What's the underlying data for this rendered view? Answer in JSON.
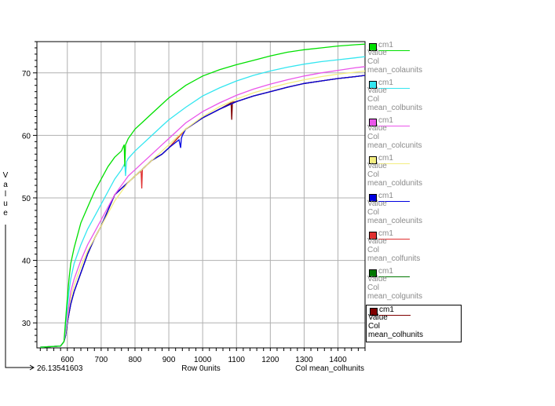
{
  "chart_data": {
    "type": "line",
    "title": "",
    "xlabel": "Row 0units",
    "ylabel": "Value",
    "x_axis_caption": "Col mean_colhunits",
    "origin_value": "26.13541603",
    "xlim": [
      510,
      1480
    ],
    "ylim": [
      26,
      75
    ],
    "x_ticks": [
      600,
      700,
      800,
      900,
      1000,
      1100,
      1200,
      1300,
      1400
    ],
    "y_ticks": [
      30,
      40,
      50,
      60,
      70
    ],
    "grid": true,
    "legend_position": "right",
    "series": [
      {
        "name": "cm1",
        "color": "#00e000",
        "legend_lines": [
          "Value",
          "Col",
          "mean_colaunits"
        ],
        "x": [
          520,
          580,
          590,
          595,
          600,
          605,
          610,
          620,
          630,
          640,
          660,
          680,
          700,
          720,
          740,
          760,
          768,
          770,
          772,
          780,
          800,
          820,
          850,
          880,
          900,
          950,
          1000,
          1050,
          1100,
          1150,
          1200,
          1250,
          1300,
          1350,
          1400,
          1450,
          1480
        ],
        "y": [
          26.1,
          26.3,
          27.0,
          30.5,
          34.0,
          37.0,
          39.5,
          42.0,
          44.0,
          46.0,
          48.5,
          51.0,
          53.0,
          55.0,
          56.5,
          57.5,
          58.5,
          55.0,
          58.5,
          59.5,
          61.0,
          62.0,
          63.5,
          65.0,
          66.0,
          68.0,
          69.5,
          70.5,
          71.3,
          72.0,
          72.7,
          73.3,
          73.7,
          74.0,
          74.3,
          74.5,
          74.6
        ]
      },
      {
        "name": "cm1",
        "color": "#33e6f0",
        "legend_lines": [
          "Value",
          "Col",
          "mean_colbunits"
        ],
        "x": [
          520,
          580,
          590,
          595,
          600,
          605,
          610,
          620,
          640,
          660,
          680,
          700,
          720,
          740,
          760,
          770,
          772,
          775,
          780,
          800,
          820,
          850,
          880,
          900,
          950,
          1000,
          1050,
          1100,
          1150,
          1200,
          1250,
          1300,
          1350,
          1400,
          1450,
          1480
        ],
        "y": [
          26.1,
          26.3,
          27.0,
          29.5,
          32.5,
          35.0,
          37.0,
          39.5,
          42.5,
          45.0,
          47.0,
          49.0,
          51.0,
          53.0,
          54.5,
          55.5,
          53.5,
          55.8,
          56.3,
          57.5,
          58.5,
          60.0,
          61.5,
          62.5,
          64.5,
          66.3,
          67.6,
          68.7,
          69.6,
          70.3,
          70.9,
          71.4,
          71.8,
          72.1,
          72.4,
          72.6
        ]
      },
      {
        "name": "cm1",
        "color": "#ea55ea",
        "legend_lines": [
          "Value",
          "Col",
          "mean_colcunits"
        ],
        "x": [
          520,
          580,
          590,
          595,
          600,
          605,
          610,
          620,
          640,
          660,
          680,
          700,
          720,
          740,
          760,
          780,
          800,
          820,
          850,
          880,
          900,
          950,
          1000,
          1050,
          1100,
          1150,
          1200,
          1250,
          1300,
          1350,
          1400,
          1450,
          1480
        ],
        "y": [
          26.1,
          26.3,
          27.0,
          29.0,
          31.0,
          33.0,
          35.0,
          37.0,
          40.0,
          42.5,
          44.5,
          46.5,
          48.5,
          50.5,
          52.0,
          53.5,
          54.5,
          55.5,
          57.0,
          58.5,
          59.5,
          62.0,
          63.8,
          65.2,
          66.4,
          67.4,
          68.2,
          68.9,
          69.5,
          70.0,
          70.4,
          70.8,
          71.0
        ]
      },
      {
        "name": "cm1",
        "color": "#f3ee80",
        "legend_lines": [
          "Value",
          "Col",
          "mean_coldunits"
        ],
        "x": [
          520,
          580,
          590,
          595,
          600,
          605,
          610,
          620,
          640,
          660,
          680,
          700,
          720,
          740,
          760,
          780,
          800,
          820,
          850,
          880,
          900,
          950,
          1000,
          1050,
          1100,
          1150,
          1200,
          1250,
          1300,
          1350,
          1400,
          1450,
          1480
        ],
        "y": [
          26.1,
          26.3,
          27.0,
          28.5,
          30.5,
          32.5,
          34.0,
          36.0,
          39.0,
          41.5,
          43.5,
          45.5,
          47.5,
          49.5,
          51.0,
          52.5,
          53.5,
          54.5,
          56.0,
          57.5,
          58.5,
          61.0,
          63.0,
          64.6,
          65.8,
          66.8,
          67.6,
          68.3,
          68.9,
          69.4,
          69.8,
          70.1,
          70.3
        ]
      },
      {
        "name": "cm1",
        "color": "#0000e0",
        "legend_lines": [
          "Value",
          "Col",
          "mean_coleunits"
        ],
        "x": [
          520,
          580,
          590,
          595,
          600,
          605,
          610,
          620,
          640,
          660,
          680,
          700,
          720,
          740,
          760,
          780,
          800,
          820,
          850,
          880,
          900,
          930,
          935,
          937,
          940,
          950,
          1000,
          1050,
          1100,
          1150,
          1200,
          1250,
          1300,
          1350,
          1400,
          1450,
          1480
        ],
        "y": [
          26.1,
          26.3,
          27.0,
          28.0,
          30.0,
          31.5,
          33.0,
          35.0,
          38.0,
          41.0,
          43.5,
          45.5,
          48.0,
          50.5,
          51.5,
          52.5,
          53.5,
          54.5,
          56.0,
          57.0,
          58.0,
          59.3,
          58.0,
          59.5,
          60.0,
          61.0,
          62.8,
          64.2,
          65.4,
          66.3,
          67.0,
          67.7,
          68.3,
          68.7,
          69.1,
          69.4,
          69.6
        ]
      },
      {
        "name": "cm1",
        "color": "#e03030",
        "legend_lines": [
          "Value",
          "Col",
          "mean_colfunits"
        ],
        "x": [
          520,
          580,
          590,
          595,
          600,
          605,
          610,
          620,
          640,
          660,
          680,
          700,
          720,
          740,
          760,
          780,
          800,
          818,
          820,
          822,
          830,
          850,
          880,
          900,
          950,
          1000,
          1050,
          1100,
          1150,
          1200,
          1250,
          1300,
          1350,
          1400,
          1450,
          1480
        ],
        "y": [
          26.1,
          26.3,
          27.0,
          28.0,
          30.0,
          31.5,
          33.0,
          35.0,
          38.0,
          41.0,
          43.5,
          45.5,
          48.0,
          50.5,
          51.5,
          52.5,
          53.5,
          54.3,
          51.5,
          54.6,
          55.0,
          56.0,
          57.0,
          58.0,
          61.0,
          62.8,
          64.2,
          65.4,
          66.3,
          67.0,
          67.7,
          68.3,
          68.7,
          69.1,
          69.4,
          69.6
        ]
      },
      {
        "name": "cm1",
        "color": "#007800",
        "legend_lines": [
          "Value",
          "Col",
          "mean_colgunits"
        ],
        "x": [
          520,
          580,
          590,
          595,
          600,
          605,
          610,
          620,
          640,
          660,
          680,
          700,
          720,
          740,
          760,
          780,
          800,
          820,
          850,
          880,
          900,
          950,
          1000,
          1050,
          1100,
          1150,
          1200,
          1250,
          1300,
          1350,
          1400,
          1450,
          1480
        ],
        "y": [
          26.1,
          26.3,
          27.0,
          28.0,
          30.0,
          31.5,
          33.0,
          35.0,
          38.0,
          41.0,
          43.5,
          45.5,
          48.0,
          50.5,
          51.5,
          52.5,
          53.5,
          54.5,
          56.0,
          57.0,
          58.0,
          61.0,
          62.8,
          64.2,
          65.4,
          66.3,
          67.0,
          67.7,
          68.3,
          68.7,
          69.1,
          69.4,
          69.6
        ]
      },
      {
        "name": "cm1",
        "color": "#800000",
        "legend_lines": [
          "Value",
          "Col",
          "mean_colhunits"
        ],
        "x": [
          520,
          580,
          590,
          595,
          600,
          605,
          610,
          620,
          640,
          660,
          680,
          700,
          720,
          740,
          760,
          780,
          800,
          820,
          850,
          880,
          900,
          950,
          1000,
          1050,
          1084,
          1086,
          1088,
          1100,
          1150,
          1200,
          1250,
          1300,
          1350,
          1400,
          1450,
          1480
        ],
        "y": [
          26.1,
          26.3,
          27.0,
          28.0,
          30.0,
          31.5,
          33.0,
          35.0,
          38.0,
          41.0,
          43.5,
          45.5,
          48.0,
          50.5,
          51.5,
          52.5,
          53.5,
          54.5,
          56.0,
          57.0,
          58.0,
          61.0,
          62.8,
          64.2,
          65.2,
          62.5,
          65.3,
          65.4,
          66.3,
          67.0,
          67.7,
          68.3,
          68.7,
          69.1,
          69.4,
          69.6
        ]
      }
    ]
  }
}
